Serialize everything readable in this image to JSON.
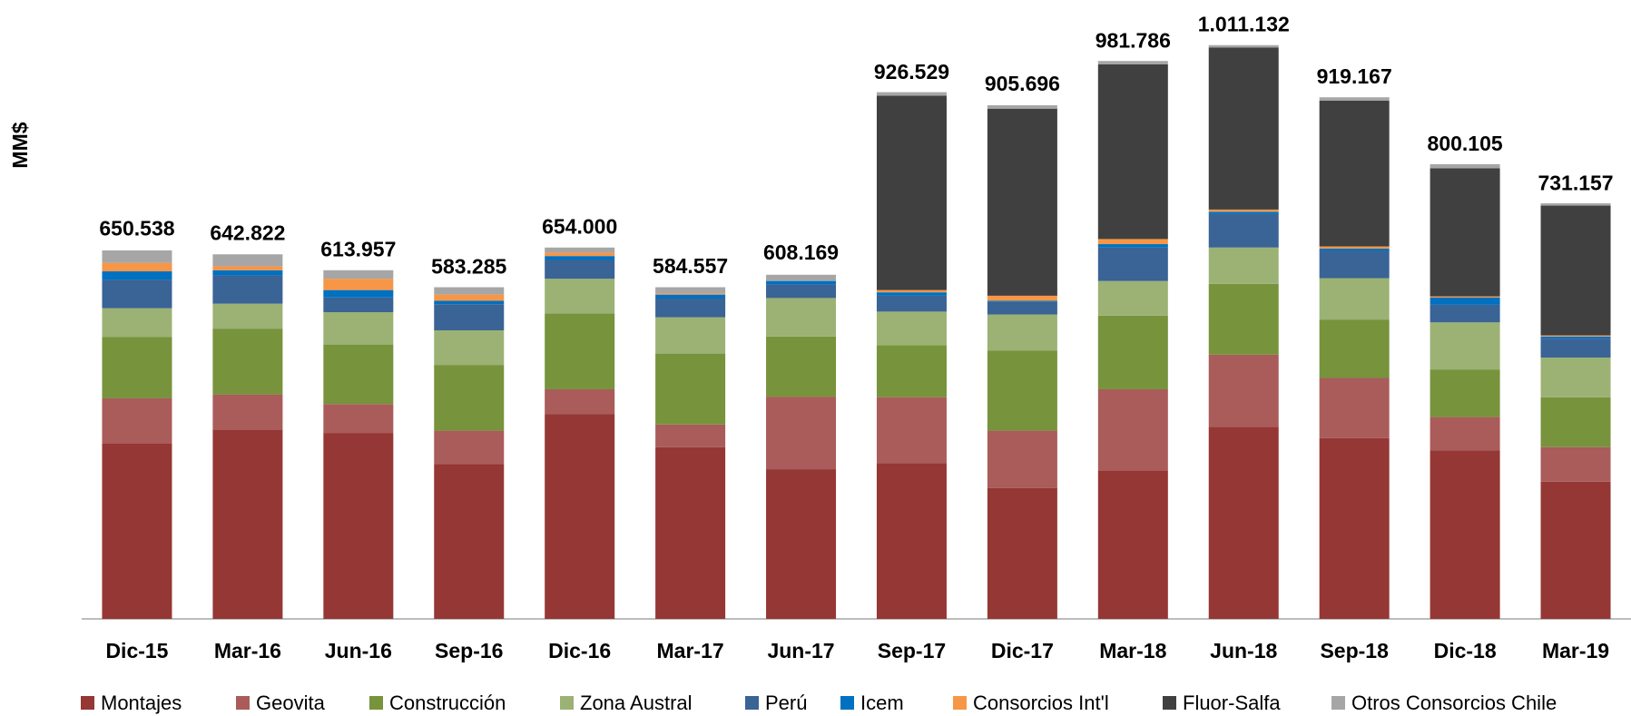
{
  "chart_data": {
    "type": "stacked_bar",
    "ylabel": "MM$",
    "categories": [
      "Dic-15",
      "Mar-16",
      "Jun-16",
      "Sep-16",
      "Dic-16",
      "Mar-17",
      "Jun-17",
      "Sep-17",
      "Dic-17",
      "Mar-18",
      "Jun-18",
      "Sep-18",
      "Dic-18",
      "Mar-19"
    ],
    "ylim": [
      0,
      1050000
    ],
    "series": [
      {
        "name": "Montajes",
        "color": "#953735",
        "values": [
          310000,
          334000,
          328000,
          273000,
          361000,
          303000,
          264000,
          275000,
          231000,
          262000,
          339000,
          319000,
          297000,
          242000
        ]
      },
      {
        "name": "Geovita",
        "color": "#a95c5a",
        "values": [
          79000,
          62000,
          51000,
          59000,
          44000,
          40000,
          128000,
          116000,
          101000,
          143000,
          127000,
          106000,
          59000,
          61000
        ]
      },
      {
        "name": "Construcción",
        "color": "#77933c",
        "values": [
          108000,
          116000,
          105000,
          116000,
          134000,
          125000,
          106000,
          92000,
          141000,
          130000,
          125000,
          103000,
          84000,
          88000
        ]
      },
      {
        "name": "Zona Austral",
        "color": "#9bb274",
        "values": [
          51000,
          44000,
          57000,
          61000,
          61000,
          64000,
          68000,
          59000,
          64000,
          61000,
          64000,
          73000,
          83000,
          70000
        ]
      },
      {
        "name": "Perú",
        "color": "#3a6396",
        "values": [
          50000,
          50000,
          26000,
          46000,
          33000,
          33000,
          24000,
          28000,
          22000,
          59000,
          59000,
          48000,
          31000,
          33000
        ]
      },
      {
        "name": "Icem",
        "color": "#0070c0",
        "values": [
          15000,
          9000,
          13000,
          6000,
          7000,
          7000,
          6000,
          6000,
          2000,
          6000,
          4000,
          4000,
          13000,
          4000
        ]
      },
      {
        "name": "Consorcios Int'l",
        "color": "#f79646",
        "values": [
          15000,
          7000,
          20000,
          11000,
          6000,
          2000,
          0,
          4000,
          9000,
          9000,
          4000,
          4000,
          2000,
          2000
        ]
      },
      {
        "name": "Fluor-Salfa",
        "color": "#404040",
        "values": [
          0,
          0,
          0,
          0,
          0,
          0,
          0,
          343000,
          330000,
          308000,
          286000,
          257000,
          226000,
          229000
        ]
      },
      {
        "name": "Otros Consorcios Chile",
        "color": "#a6a6a6",
        "values": [
          22000,
          21000,
          15000,
          13000,
          9000,
          11000,
          11000,
          6000,
          6000,
          6000,
          4000,
          6000,
          7000,
          4000
        ]
      }
    ],
    "totals": [
      650538,
      642822,
      613957,
      583285,
      654000,
      584557,
      608169,
      926529,
      905696,
      981786,
      1011132,
      919167,
      800105,
      731157
    ],
    "value_labels": [
      "650.538",
      "642.822",
      "613.957",
      "583.285",
      "654.000",
      "584.557",
      "608.169",
      "926.529",
      "905.696",
      "981.786",
      "1.011.132",
      "919.167",
      "800.105",
      "731.157"
    ]
  }
}
